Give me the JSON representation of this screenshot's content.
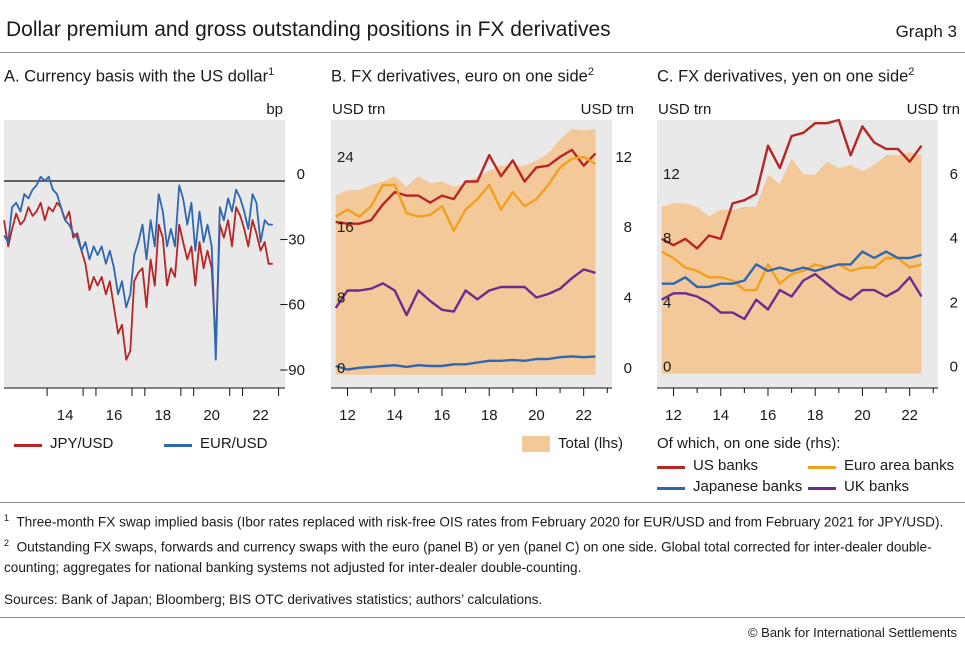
{
  "header": {
    "title": "Dollar premium and gross outstanding positions in FX derivatives",
    "graph_no": "Graph 3"
  },
  "panels": {
    "a": {
      "title": "A. Currency basis with the US dollar",
      "title_note": "1",
      "rhs_unit": "bp"
    },
    "b": {
      "title": "B. FX derivatives, euro on one side",
      "title_note": "2",
      "lhs_unit": "USD trn",
      "rhs_unit": "USD trn"
    },
    "c": {
      "title": "C. FX derivatives, yen on one side",
      "title_note": "2",
      "lhs_unit": "USD trn",
      "rhs_unit": "USD trn"
    }
  },
  "legend": {
    "jpy": "JPY/USD",
    "eur": "EUR/USD",
    "total": "Total (lhs)",
    "of_which": "Of which, on one side (rhs):",
    "us_banks": "US banks",
    "euro_area_banks": "Euro area banks",
    "japanese_banks": "Japanese banks",
    "uk_banks": "UK banks"
  },
  "colors": {
    "red": "#b72525",
    "blue": "#2e67b1",
    "orange": "#f2a01e",
    "purple": "#6a2c91",
    "fill": "#f3c99a",
    "plot_bg": "#e9e9e9"
  },
  "footnotes": {
    "n1_num": "1",
    "n1_text": "Three-month FX swap implied basis (Ibor rates replaced with risk-free OIS rates from February 2020 for EUR/USD and from February 2021 for JPY/USD).",
    "n2_num": "2",
    "n2_text": "Outstanding FX swaps, forwards and currency swaps with the euro (panel B) or yen (panel C) on one side. Global total corrected for inter-dealer double-counting; aggregates for national banking systems not adjusted for inter-dealer double-counting."
  },
  "sources": "Sources: Bank of Japan; Bloomberg; BIS OTC derivatives statistics; authors’ calculations.",
  "copyright": "© Bank for International Settlements",
  "chart_data": [
    {
      "id": "a",
      "type": "line",
      "title": "A. Currency basis with the US dollar",
      "ylabel": "bp",
      "ylim": [
        -95,
        28
      ],
      "xlim": [
        2011.5,
        2023.0
      ],
      "yticks": [
        0,
        -30,
        -60,
        -90
      ],
      "xticks": [
        2014,
        2016,
        2018,
        2020,
        2022
      ],
      "xticklabels": [
        "14",
        "16",
        "18",
        "20",
        "22"
      ],
      "hline": 0,
      "series": [
        {
          "name": "JPY/USD",
          "x": [
            2011.5,
            2011.67,
            2011.83,
            2012.0,
            2012.17,
            2012.33,
            2012.5,
            2012.67,
            2012.83,
            2013.0,
            2013.17,
            2013.33,
            2013.5,
            2013.67,
            2013.83,
            2014.0,
            2014.17,
            2014.33,
            2014.5,
            2014.67,
            2014.83,
            2015.0,
            2015.17,
            2015.33,
            2015.5,
            2015.67,
            2015.83,
            2016.0,
            2016.17,
            2016.33,
            2016.5,
            2016.67,
            2016.83,
            2017.0,
            2017.17,
            2017.33,
            2017.5,
            2017.67,
            2017.83,
            2018.0,
            2018.17,
            2018.33,
            2018.5,
            2018.67,
            2018.83,
            2019.0,
            2019.17,
            2019.33,
            2019.5,
            2019.67,
            2019.83,
            2020.0,
            2020.17,
            2020.33,
            2020.5,
            2020.67,
            2020.83,
            2021.0,
            2021.17,
            2021.33,
            2021.5,
            2021.67,
            2021.83,
            2022.0,
            2022.17,
            2022.33,
            2022.5
          ],
          "values": [
            -18,
            -30,
            -22,
            -15,
            -20,
            -18,
            -12,
            -16,
            -14,
            -10,
            -18,
            -12,
            -14,
            -10,
            -12,
            -18,
            -14,
            -26,
            -24,
            -32,
            -38,
            -50,
            -44,
            -48,
            -44,
            -52,
            -46,
            -58,
            -70,
            -66,
            -82,
            -78,
            -46,
            -42,
            -40,
            -58,
            -36,
            -48,
            -20,
            -26,
            -48,
            -40,
            -44,
            -20,
            -28,
            -36,
            -30,
            -48,
            -28,
            -40,
            -32,
            -40,
            -76,
            -20,
            -26,
            -18,
            -30,
            -12,
            -16,
            -22,
            -30,
            -18,
            -24,
            -32,
            -28,
            -38,
            -38
          ]
        },
        {
          "name": "EUR/USD",
          "x": [
            2011.5,
            2011.67,
            2011.83,
            2012.0,
            2012.17,
            2012.33,
            2012.5,
            2012.67,
            2012.83,
            2013.0,
            2013.17,
            2013.33,
            2013.5,
            2013.67,
            2013.83,
            2014.0,
            2014.17,
            2014.33,
            2014.5,
            2014.67,
            2014.83,
            2015.0,
            2015.17,
            2015.33,
            2015.5,
            2015.67,
            2015.83,
            2016.0,
            2016.17,
            2016.33,
            2016.5,
            2016.67,
            2016.83,
            2017.0,
            2017.17,
            2017.33,
            2017.5,
            2017.67,
            2017.83,
            2018.0,
            2018.17,
            2018.33,
            2018.5,
            2018.67,
            2018.83,
            2019.0,
            2019.17,
            2019.33,
            2019.5,
            2019.67,
            2019.83,
            2020.0,
            2020.17,
            2020.33,
            2020.5,
            2020.67,
            2020.83,
            2021.0,
            2021.17,
            2021.33,
            2021.5,
            2021.67,
            2021.83,
            2022.0,
            2022.17,
            2022.33,
            2022.5
          ],
          "values": [
            -25,
            -28,
            -12,
            -10,
            -14,
            -6,
            -8,
            -4,
            -2,
            2,
            0,
            2,
            -4,
            -6,
            -12,
            -18,
            -20,
            -24,
            -26,
            -32,
            -28,
            -36,
            -30,
            -34,
            -30,
            -38,
            -32,
            -40,
            -52,
            -46,
            -58,
            -52,
            -34,
            -28,
            -20,
            -36,
            -18,
            -30,
            -6,
            -14,
            -30,
            -22,
            -30,
            -2,
            -8,
            -20,
            -10,
            -32,
            -14,
            -28,
            -20,
            -30,
            -82,
            -12,
            -18,
            -8,
            -14,
            -4,
            -8,
            -14,
            -22,
            -6,
            -10,
            -28,
            -18,
            -20,
            -20
          ]
        }
      ]
    },
    {
      "id": "b",
      "type": "area+line",
      "title": "B. FX derivatives, euro on one side",
      "ylabel": "USD trn",
      "ylim_lhs": [
        -1.5,
        29
      ],
      "ylim_rhs": [
        -0.75,
        14.5
      ],
      "yticks_lhs": [
        0,
        8,
        16,
        24
      ],
      "yticks_rhs": [
        0,
        4,
        8,
        12
      ],
      "xlim": [
        2011.3,
        2023.2
      ],
      "xticks": [
        2012,
        2014,
        2016,
        2018,
        2020,
        2022
      ],
      "xticklabels": [
        "12",
        "14",
        "16",
        "18",
        "20",
        "22"
      ],
      "x": [
        2011.5,
        2012.0,
        2012.5,
        2013.0,
        2013.5,
        2014.0,
        2014.5,
        2015.0,
        2015.5,
        2016.0,
        2016.5,
        2017.0,
        2017.5,
        2018.0,
        2018.5,
        2019.0,
        2019.5,
        2020.0,
        2020.5,
        2021.0,
        2021.5,
        2022.0,
        2022.5
      ],
      "series": [
        {
          "name": "Total (lhs)",
          "axis": "lhs",
          "values": [
            20.4,
            21.0,
            21.0,
            21.6,
            22.0,
            22.6,
            21.4,
            22.6,
            21.8,
            22.0,
            21.4,
            21.8,
            22.6,
            23.2,
            23.8,
            23.8,
            23.8,
            24.4,
            25.2,
            26.8,
            28.0,
            27.8,
            28.0
          ]
        },
        {
          "name": "US banks",
          "axis": "rhs",
          "values": [
            8.7,
            8.6,
            8.6,
            8.8,
            9.7,
            10.4,
            10.2,
            10.2,
            9.8,
            10.2,
            10.0,
            11.0,
            11.0,
            12.5,
            11.3,
            12.2,
            11.0,
            11.8,
            11.9,
            12.4,
            12.8,
            11.9,
            12.6
          ]
        },
        {
          "name": "Euro area banks",
          "axis": "rhs",
          "values": [
            9.0,
            9.4,
            9.0,
            9.6,
            10.8,
            10.8,
            9.2,
            9.0,
            9.1,
            9.6,
            8.2,
            9.4,
            10.0,
            10.8,
            9.4,
            10.4,
            9.6,
            10.0,
            10.8,
            11.8,
            12.3,
            12.4,
            12.0
          ]
        },
        {
          "name": "Japanese banks",
          "axis": "rhs",
          "values": [
            0.5,
            0.3,
            0.4,
            0.45,
            0.5,
            0.55,
            0.45,
            0.55,
            0.5,
            0.5,
            0.6,
            0.6,
            0.7,
            0.8,
            0.8,
            0.85,
            0.8,
            0.9,
            0.9,
            1.0,
            1.05,
            1.0,
            1.05
          ]
        },
        {
          "name": "UK banks",
          "axis": "rhs",
          "values": [
            3.8,
            4.8,
            4.8,
            4.9,
            5.2,
            4.8,
            3.4,
            4.8,
            4.2,
            3.7,
            3.6,
            4.8,
            4.3,
            4.8,
            5.0,
            5.0,
            5.0,
            4.4,
            4.6,
            4.9,
            5.5,
            6.0,
            5.8
          ]
        }
      ]
    },
    {
      "id": "c",
      "type": "area+line",
      "title": "C. FX derivatives, yen on one side",
      "ylabel": "USD trn",
      "ylim_lhs": [
        -0.9,
        15.8
      ],
      "ylim_rhs": [
        -0.45,
        7.9
      ],
      "yticks_lhs": [
        0,
        4,
        8,
        12
      ],
      "yticks_rhs": [
        0,
        2,
        4,
        6
      ],
      "xlim": [
        2011.3,
        2023.2
      ],
      "xticks": [
        2012,
        2014,
        2016,
        2018,
        2020,
        2022
      ],
      "xticklabels": [
        "12",
        "14",
        "16",
        "18",
        "20",
        "22"
      ],
      "x": [
        2011.5,
        2012.0,
        2012.5,
        2013.0,
        2013.5,
        2014.0,
        2014.5,
        2015.0,
        2015.5,
        2016.0,
        2016.5,
        2017.0,
        2017.5,
        2018.0,
        2018.5,
        2019.0,
        2019.5,
        2020.0,
        2020.5,
        2021.0,
        2021.5,
        2022.0,
        2022.5
      ],
      "series": [
        {
          "name": "Total (lhs)",
          "axis": "lhs",
          "values": [
            10.4,
            10.6,
            10.6,
            10.4,
            9.8,
            10.2,
            10.2,
            10.4,
            10.4,
            12.4,
            11.8,
            13.4,
            12.4,
            12.4,
            13.2,
            12.8,
            13.0,
            12.6,
            13.0,
            13.6,
            13.6,
            13.8,
            13.6
          ]
        },
        {
          "name": "US banks",
          "axis": "rhs",
          "values": [
            4.2,
            4.0,
            4.2,
            3.9,
            4.3,
            4.2,
            5.3,
            5.4,
            5.6,
            7.1,
            6.4,
            7.4,
            7.5,
            7.8,
            7.8,
            7.9,
            6.8,
            7.7,
            7.2,
            7.0,
            7.0,
            6.6,
            7.1
          ]
        },
        {
          "name": "Euro area banks",
          "axis": "rhs",
          "values": [
            3.8,
            3.6,
            3.3,
            3.2,
            3.0,
            3.0,
            2.9,
            2.6,
            2.6,
            3.4,
            2.8,
            3.1,
            3.2,
            3.4,
            3.3,
            3.4,
            3.2,
            3.3,
            3.3,
            3.6,
            3.6,
            3.3,
            3.4
          ]
        },
        {
          "name": "Japanese banks",
          "axis": "rhs",
          "values": [
            2.8,
            2.8,
            3.0,
            2.7,
            2.7,
            2.8,
            2.8,
            2.9,
            3.4,
            3.2,
            3.3,
            3.2,
            3.3,
            3.2,
            3.3,
            3.4,
            3.4,
            3.8,
            3.6,
            3.8,
            3.6,
            3.6,
            3.7
          ]
        },
        {
          "name": "UK banks",
          "axis": "rhs",
          "values": [
            2.3,
            2.5,
            2.5,
            2.4,
            2.2,
            1.9,
            1.9,
            1.7,
            2.3,
            2.0,
            2.6,
            2.4,
            2.9,
            3.1,
            2.8,
            2.5,
            2.3,
            2.6,
            2.6,
            2.4,
            2.6,
            3.0,
            2.4
          ]
        }
      ]
    }
  ]
}
